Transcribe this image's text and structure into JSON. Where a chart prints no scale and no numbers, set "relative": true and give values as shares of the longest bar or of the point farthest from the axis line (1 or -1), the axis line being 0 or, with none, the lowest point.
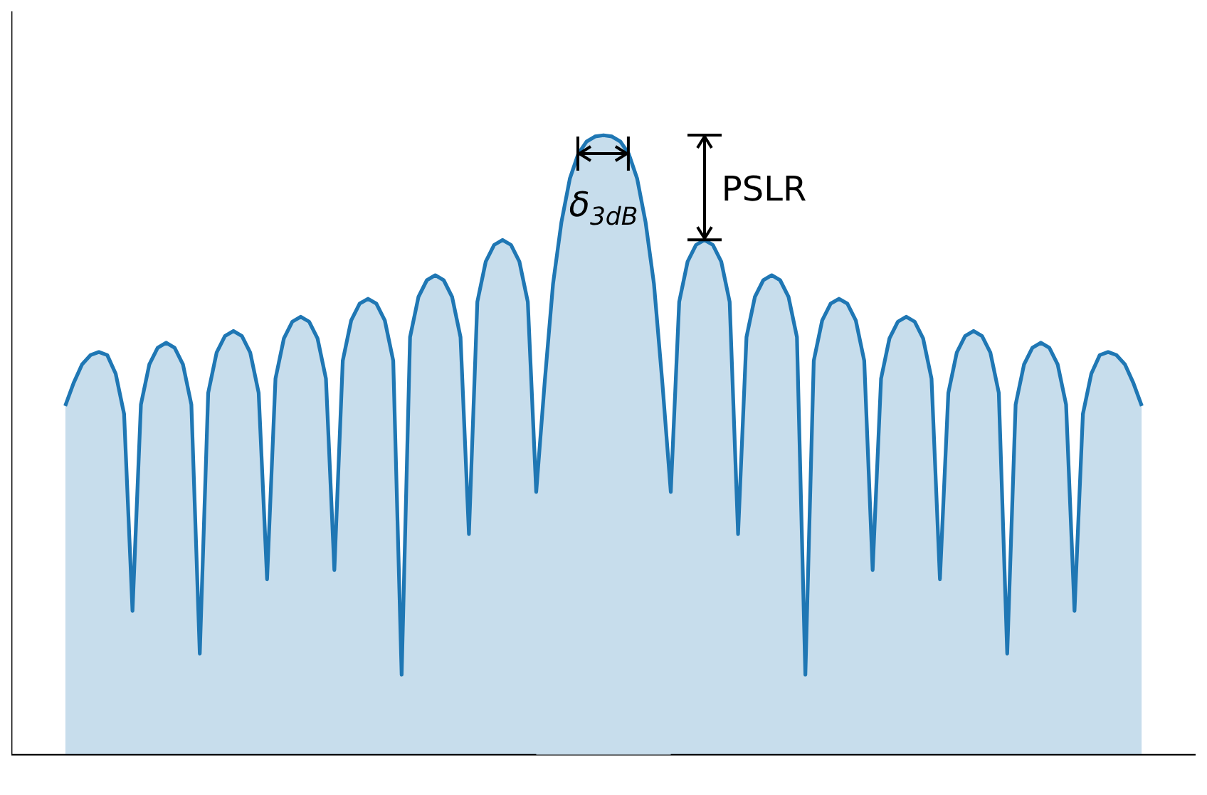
{
  "chart_data": {
    "type": "area",
    "relative": true,
    "categories": [
      null,
      null,
      null,
      null,
      null,
      null,
      null,
      null,
      null,
      null,
      null,
      null,
      null,
      null,
      null,
      null,
      null,
      null,
      null,
      null,
      null,
      null,
      null,
      null,
      null,
      null,
      null,
      null,
      null,
      null,
      null,
      null,
      null,
      null,
      null,
      null,
      null,
      null,
      null,
      null,
      null,
      null,
      null,
      null,
      null,
      null,
      null,
      null,
      null,
      null,
      null,
      null,
      null,
      null,
      null,
      null,
      null,
      null,
      null,
      null,
      null,
      null,
      null,
      null,
      null,
      null,
      null,
      null,
      null,
      null,
      null,
      null,
      null,
      null,
      null,
      null,
      null,
      null,
      null,
      null,
      null,
      null,
      null,
      null,
      null,
      null,
      null,
      null,
      null,
      null,
      null,
      null,
      null,
      null,
      null,
      null,
      null,
      null,
      null,
      null,
      null,
      null,
      null,
      null,
      null,
      null,
      null,
      null,
      null,
      null,
      null,
      null,
      null,
      null,
      null,
      null,
      null,
      null,
      null,
      null,
      null,
      null,
      null,
      null,
      null,
      null,
      null,
      null,
      null
    ],
    "series": [
      {
        "color": "#1f77b4",
        "values": [
          0.563,
          0.6,
          0.63,
          0.645,
          0.65,
          0.645,
          0.615,
          0.55,
          0.232,
          0.565,
          0.63,
          0.657,
          0.665,
          0.657,
          0.63,
          0.565,
          0.163,
          0.584,
          0.649,
          0.676,
          0.684,
          0.676,
          0.649,
          0.584,
          0.283,
          0.607,
          0.672,
          0.699,
          0.707,
          0.699,
          0.672,
          0.607,
          0.298,
          0.636,
          0.701,
          0.728,
          0.736,
          0.728,
          0.701,
          0.636,
          0.129,
          0.674,
          0.739,
          0.766,
          0.774,
          0.766,
          0.739,
          0.674,
          0.356,
          0.731,
          0.796,
          0.823,
          0.831,
          0.823,
          0.796,
          0.731,
          0.424,
          0.6,
          0.76,
          0.86,
          0.93,
          0.97,
          0.99,
          0.998,
          1.0,
          0.998,
          0.99,
          0.97,
          0.93,
          0.86,
          0.76,
          0.6,
          0.424,
          0.731,
          0.796,
          0.823,
          0.831,
          0.823,
          0.796,
          0.731,
          0.356,
          0.674,
          0.739,
          0.766,
          0.774,
          0.766,
          0.739,
          0.674,
          0.129,
          0.636,
          0.701,
          0.728,
          0.736,
          0.728,
          0.701,
          0.636,
          0.298,
          0.607,
          0.672,
          0.699,
          0.707,
          0.699,
          0.672,
          0.607,
          0.283,
          0.584,
          0.649,
          0.676,
          0.684,
          0.676,
          0.649,
          0.584,
          0.163,
          0.565,
          0.63,
          0.657,
          0.665,
          0.657,
          0.63,
          0.565,
          0.232,
          0.55,
          0.615,
          0.645,
          0.65,
          0.645,
          0.63,
          0.6,
          0.563
        ]
      }
    ],
    "annotations": [
      "δ$_{3dB}$",
      "PSLR"
    ],
    "legend": false
  }
}
